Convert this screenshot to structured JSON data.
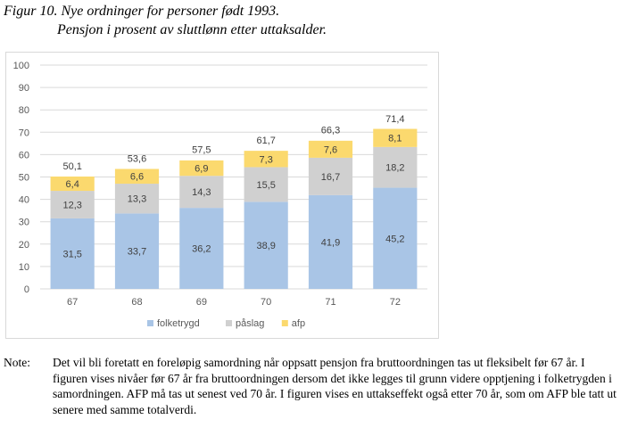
{
  "figure": {
    "title": "Figur 10. Nye ordninger for personer født 1993.",
    "subtitle": "Pensjon i prosent av sluttlønn etter uttaksalder."
  },
  "note": {
    "label": "Note:",
    "text": "Det vil bli foretatt en foreløpig samordning når oppsatt pensjon fra bruttoordningen tas ut fleksibelt før 67 år. I figuren vises nivåer før 67 år fra bruttoordningen dersom det ikke legges til grunn videre opptjening i folketrygden i samordningen. AFP må tas ut senest ved 70 år. I figuren vises en uttakseffekt også etter 70 år, som om AFP ble tatt ut senere med samme totalverdi."
  },
  "chart_data": {
    "type": "bar",
    "stacked": true,
    "categories": [
      "67",
      "68",
      "69",
      "70",
      "71",
      "72"
    ],
    "series": [
      {
        "name": "folketrygd",
        "color": "#a9c5e6",
        "values": [
          31.5,
          33.7,
          36.2,
          38.9,
          41.9,
          45.2
        ]
      },
      {
        "name": "påslag",
        "color": "#d0d0d0",
        "values": [
          12.3,
          13.3,
          14.3,
          15.5,
          16.7,
          18.2
        ]
      },
      {
        "name": "afp",
        "color": "#fbd96e",
        "values": [
          6.4,
          6.6,
          6.9,
          7.3,
          7.6,
          8.1
        ]
      }
    ],
    "totals": [
      50.1,
      53.6,
      57.5,
      61.7,
      66.3,
      71.4
    ],
    "value_labels": {
      "folketrygd": [
        "31,5",
        "33,7",
        "36,2",
        "38,9",
        "41,9",
        "45,2"
      ],
      "påslag": [
        "12,3",
        "13,3",
        "14,3",
        "15,5",
        "16,7",
        "18,2"
      ],
      "afp": [
        "6,4",
        "6,6",
        "6,9",
        "7,3",
        "7,6",
        "8,1"
      ],
      "totals": [
        "50,1",
        "53,6",
        "57,5",
        "61,7",
        "66,3",
        "71,4"
      ]
    },
    "yticks": [
      0,
      10,
      20,
      30,
      40,
      50,
      60,
      70,
      80,
      90,
      100
    ],
    "ylim": [
      0,
      100
    ],
    "grid": true,
    "legend_position": "bottom"
  }
}
